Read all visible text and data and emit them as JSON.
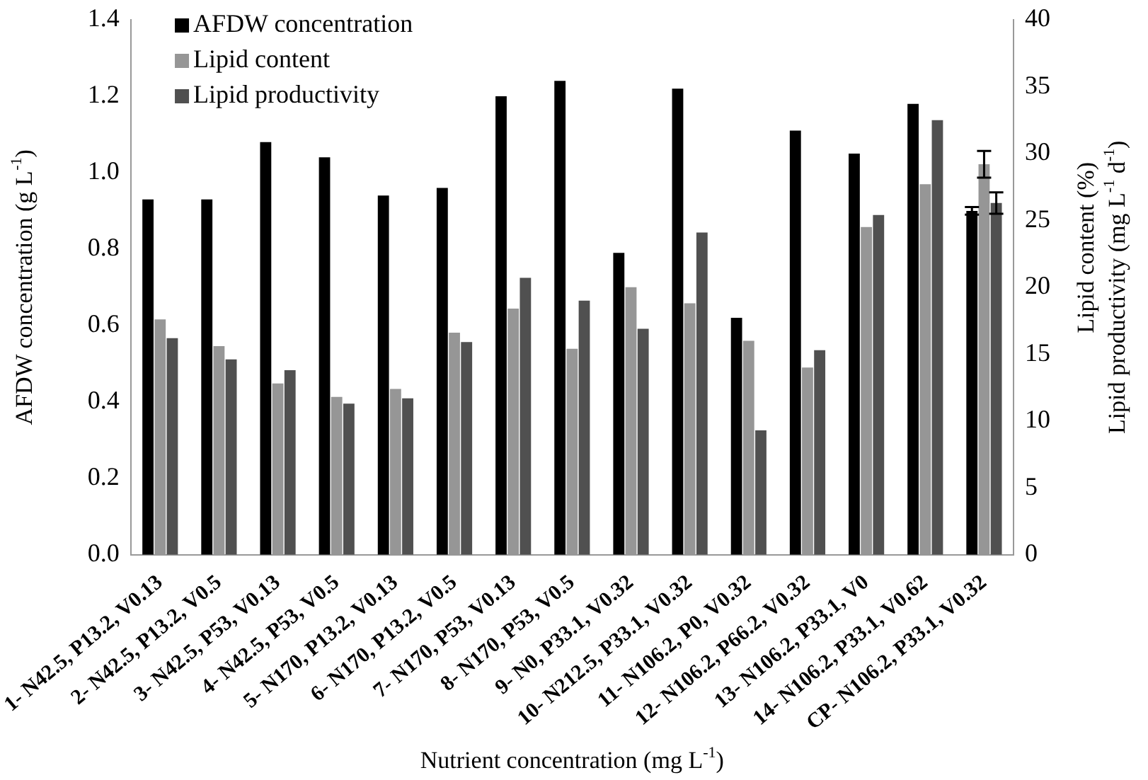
{
  "chart_data": {
    "type": "bar",
    "xlabel": "Nutrient concentration (mg L$^{-1}$)",
    "ylabel": "AFDW concentration (g L$^{-1}$)",
    "y2label": "Lipid content (%)\nLipid productivity (mg L$^{-1}$ d$^{-1}$)",
    "categories": [
      "1- N42.5, P13.2, V0.13",
      "2- N42.5, P13.2, V0.5",
      "3- N42.5, P53, V0.13",
      "4- N42.5, P53, V0.5",
      "5- N170, P13.2, V0.13",
      "6- N170, P13.2, V0.5",
      "7- N170, P53, V0.13",
      "8- N170, P53, V0.5",
      "9- N0, P33.1, V0.32",
      "10- N212.5, P33.1, V0.32",
      "11- N106.2, P0, V0.32",
      "12- N106.2, P66.2, V0.32",
      "13- N106.2, P33.1, V0",
      "14- N106.2, P33.1, V0.62",
      "CP- N106.2, P33.1, V0.32"
    ],
    "series": [
      {
        "name": "AFDW concentration",
        "color": "#000000",
        "values": [
          0.93,
          0.93,
          1.08,
          1.04,
          0.94,
          0.96,
          1.2,
          1.24,
          0.79,
          1.22,
          0.62,
          1.11,
          1.05,
          1.18,
          0.9
        ],
        "errors": [
          null,
          null,
          null,
          null,
          null,
          null,
          null,
          null,
          null,
          null,
          null,
          null,
          null,
          null,
          0.01
        ]
      },
      {
        "name": "Lipid content",
        "color": "#969696",
        "axis": "y2",
        "values": [
          17.6,
          15.6,
          12.8,
          11.8,
          12.4,
          16.6,
          18.4,
          15.4,
          20.0,
          18.8,
          16.0,
          14.0,
          24.5,
          27.7,
          29.2
        ],
        "errors": [
          null,
          null,
          null,
          null,
          null,
          null,
          null,
          null,
          null,
          null,
          null,
          null,
          null,
          null,
          1.0
        ]
      },
      {
        "name": "Lipid productivity",
        "color": "#505050",
        "axis": "y2",
        "values": [
          16.2,
          14.6,
          13.8,
          11.3,
          11.7,
          15.9,
          20.7,
          19.0,
          16.9,
          24.1,
          9.3,
          15.3,
          25.4,
          32.5,
          26.3
        ],
        "errors": [
          null,
          null,
          null,
          null,
          null,
          null,
          null,
          null,
          null,
          null,
          null,
          null,
          null,
          null,
          0.8
        ]
      }
    ],
    "ylim": [
      0,
      1.4
    ],
    "yticks": [
      {
        "value": 0,
        "label": "0.0"
      },
      {
        "value": 0.2,
        "label": "0.2"
      },
      {
        "value": 0.4,
        "label": "0.4"
      },
      {
        "value": 0.6,
        "label": "0.6"
      },
      {
        "value": 0.8,
        "label": "0.8"
      },
      {
        "value": 1,
        "label": "1.0"
      },
      {
        "value": 1.2,
        "label": "1.2"
      },
      {
        "value": 1.4,
        "label": "1.4"
      }
    ],
    "y2lim": [
      0,
      40
    ],
    "y2ticks": [
      0,
      5,
      10,
      15,
      20,
      25,
      30,
      35,
      40
    ],
    "legend": "top left",
    "grid": false
  }
}
